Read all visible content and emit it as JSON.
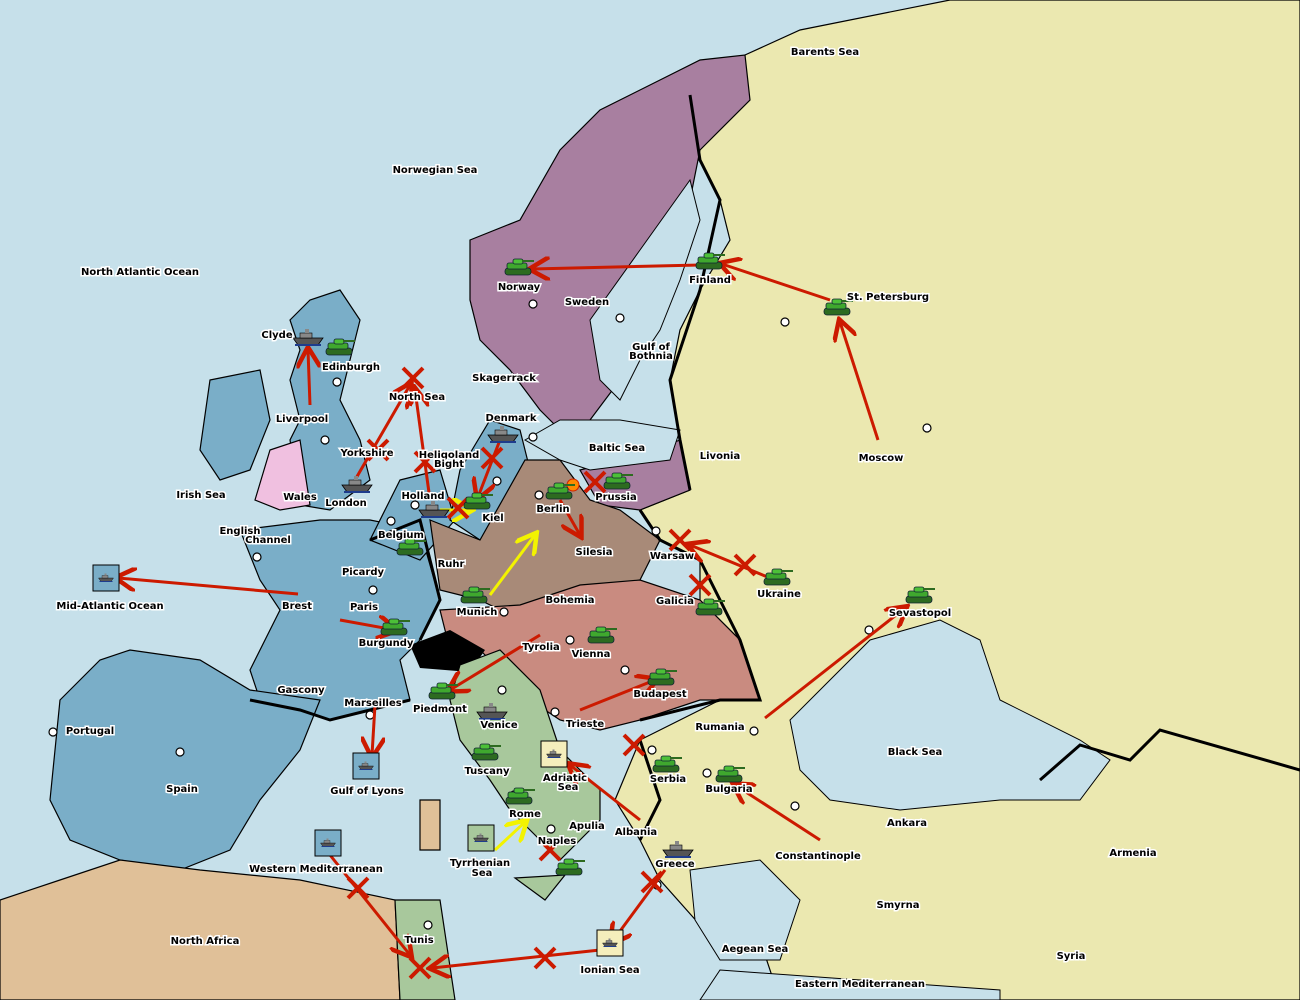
{
  "colors": {
    "sea": "#c6e0ea",
    "england_france": "#7aaec8",
    "wales": "#f0c0e0",
    "germany": "#a88a78",
    "austria": "#c98b80",
    "scandinavia": "#a87fa0",
    "russia_neutral": "#ebe8b0",
    "italy": "#a8c89c",
    "north_africa": "#e0c098",
    "switzerland": "#000000",
    "move_arrow": "#cc1a00",
    "support_arrow": "#f3f300",
    "army_unit": "#3a9a2a"
  },
  "labels": [
    "Barents Sea",
    "Norwegian Sea",
    "North Atlantic Ocean",
    "Norway",
    "Sweden",
    "Finland",
    "St. Petersburg",
    "Gulf of",
    "Clyde",
    "Edinburgh",
    "Skagerrack",
    "North Sea",
    "Liverpool",
    "Denmark",
    "Baltic Sea",
    "Yorkshire",
    "Heligoland",
    "Livonia",
    "Moscow",
    "Irish Sea",
    "Wales",
    "London",
    "Holland",
    "Prussia",
    "Berlin",
    "Kiel",
    "English",
    "Belgium",
    "Silesia",
    "Warsaw",
    "Ruhr",
    "Picardy",
    "Ukraine",
    "Brest",
    "Paris",
    "Mid-Atlantic Ocean",
    "Bohemia",
    "Galicia",
    "Munich",
    "Sevastopol",
    "Burgundy",
    "Tyrolia",
    "Vienna",
    "Gascony",
    "Budapest",
    "Marseilles",
    "Piedmont",
    "Venice",
    "Trieste",
    "Rumania",
    "Portugal",
    "Black Sea",
    "Tuscany",
    "Adriatic",
    "Serbia",
    "Bulgaria",
    "Spain",
    "Gulf of Lyons",
    "Rome",
    "Apulia",
    "Ankara",
    "Albania",
    "Naples",
    "Armenia",
    "Constantinople",
    "Greece",
    "Tyrrhenian",
    "Western Mediterranean",
    "Smyrna",
    "Tunis",
    "North Africa",
    "Syria",
    "Aegean Sea",
    "Ionian Sea",
    "Eastern Mediterranean",
    "Bothnia",
    "Bight",
    "Channel",
    "Sea",
    "Sea"
  ],
  "icons": {
    "army": "tank-icon",
    "fleet": "battleship-icon",
    "supply_center": "supply-center-icon",
    "failed_order": "x-mark-icon",
    "battle": "explosion-icon"
  }
}
